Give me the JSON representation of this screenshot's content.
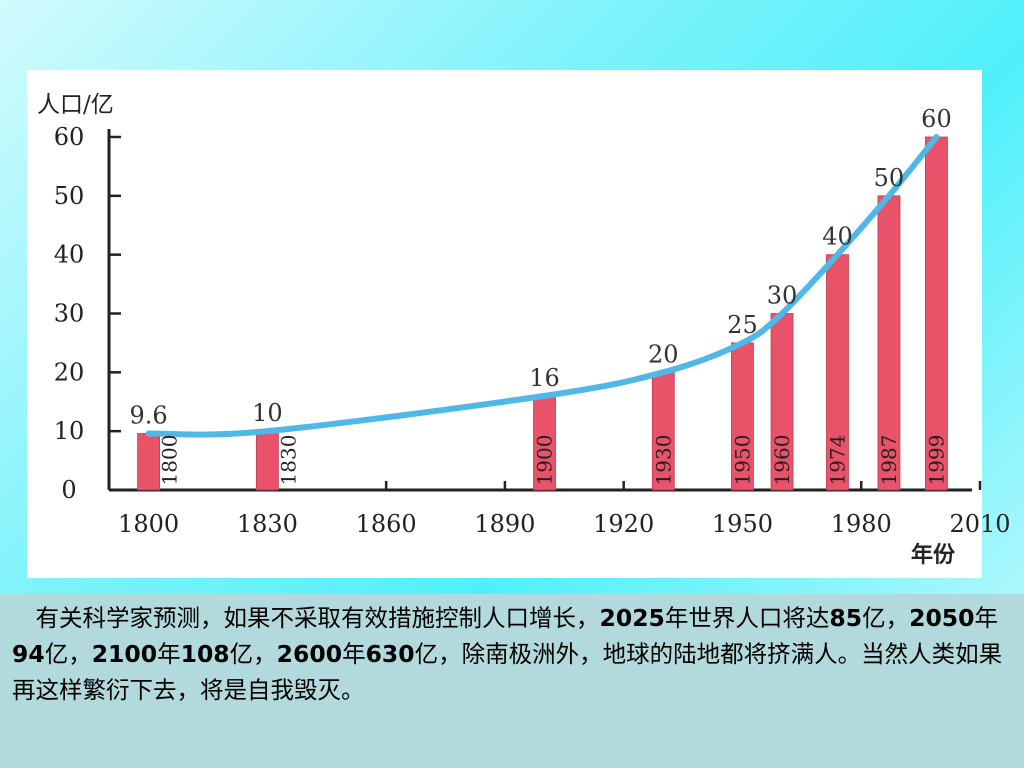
{
  "chart_data": {
    "type": "bar",
    "ylabel": "人口/亿",
    "xlabel": "年份",
    "xlim": [
      1790,
      2010
    ],
    "ylim": [
      0,
      60
    ],
    "x_ticks": [
      1800,
      1830,
      1860,
      1890,
      1920,
      1950,
      1980,
      2010
    ],
    "y_ticks": [
      0,
      10,
      20,
      30,
      40,
      50,
      60
    ],
    "bars": [
      {
        "year": 1800,
        "value": 9.6,
        "value_label": "9.6",
        "year_label": "1800"
      },
      {
        "year": 1830,
        "value": 10,
        "value_label": "10",
        "year_label": "1830"
      },
      {
        "year": 1900,
        "value": 16,
        "value_label": "16",
        "year_label": "1900"
      },
      {
        "year": 1930,
        "value": 20,
        "value_label": "20",
        "year_label": "1930"
      },
      {
        "year": 1950,
        "value": 25,
        "value_label": "25",
        "year_label": "1950"
      },
      {
        "year": 1960,
        "value": 30,
        "value_label": "30",
        "year_label": "1960"
      },
      {
        "year": 1974,
        "value": 40,
        "value_label": "40",
        "year_label": "1974"
      },
      {
        "year": 1987,
        "value": 50,
        "value_label": "50",
        "year_label": "1987"
      },
      {
        "year": 1999,
        "value": 60,
        "value_label": "60",
        "year_label": "1999"
      }
    ],
    "trend_line": {
      "x": [
        1800,
        1830,
        1900,
        1930,
        1950,
        1960,
        1974,
        1987,
        1999
      ],
      "y": [
        9.6,
        10,
        16,
        20,
        25,
        30,
        40,
        50,
        60
      ]
    },
    "colors": {
      "bar": "#e8536a",
      "trend": "#4fb8e6",
      "axis": "#222222"
    }
  },
  "caption": {
    "parts": [
      {
        "text": "有关科学家预测，如果不采取有效措施控制人口增长，",
        "bold": false
      },
      {
        "text": "2025",
        "bold": true
      },
      {
        "text": "年世界人口将达",
        "bold": false
      },
      {
        "text": "85",
        "bold": true
      },
      {
        "text": "亿，",
        "bold": false
      },
      {
        "text": "2050",
        "bold": true
      },
      {
        "text": "年",
        "bold": false
      },
      {
        "text": "94",
        "bold": true
      },
      {
        "text": "亿，",
        "bold": false
      },
      {
        "text": "2100",
        "bold": true
      },
      {
        "text": "年",
        "bold": false
      },
      {
        "text": "108",
        "bold": true
      },
      {
        "text": "亿，",
        "bold": false
      },
      {
        "text": "2600",
        "bold": true
      },
      {
        "text": "年",
        "bold": false
      },
      {
        "text": "630",
        "bold": true
      },
      {
        "text": "亿，除南极洲外，地球的陆地都将挤满人。当然人类如果再这样繁衍下去，将是自我毁灭。",
        "bold": false
      }
    ]
  }
}
